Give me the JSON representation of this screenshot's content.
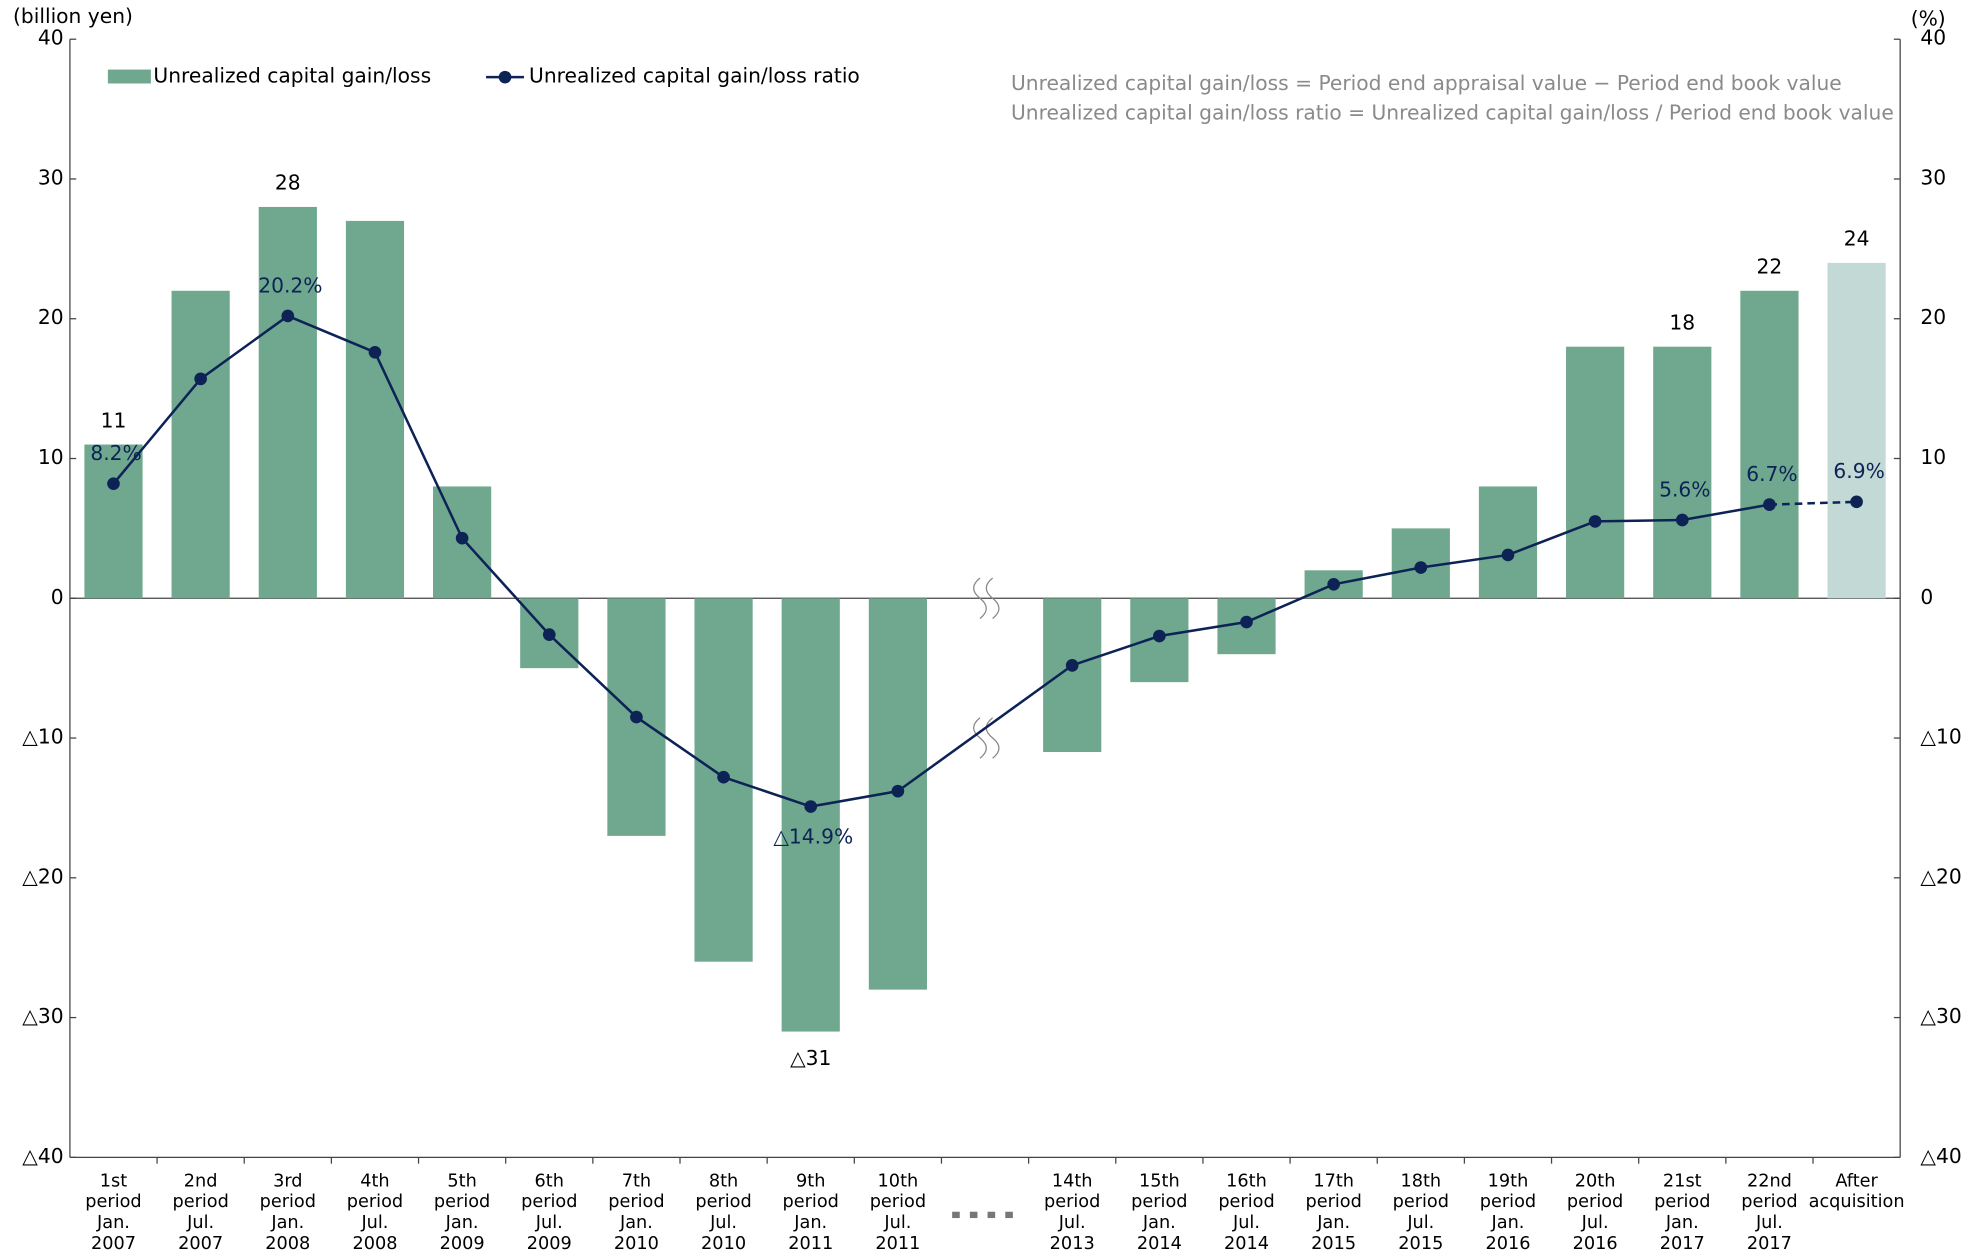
{
  "chart_data": {
    "type": "bar_line",
    "y_axis_label": "(billion yen)",
    "y2_axis_label": "(%)",
    "annotations": [
      "Unrealized capital gain/loss = Period end appraisal value − Period end book value",
      "Unrealized capital gain/loss ratio = Unrealized capital gain/loss / Period end book value"
    ],
    "categories": [
      "1st\nperiod\nJan.\n2007",
      "2nd\nperiod\nJul.\n2007",
      "3rd\nperiod\nJan.\n2008",
      "4th\nperiod\nJul.\n2008",
      "5th\nperiod\nJan.\n2009",
      "6th\nperiod\nJul.\n2009",
      "7th\nperiod\nJan.\n2010",
      "8th\nperiod\nJul.\n2010",
      "9th\nperiod\nJan.\n2011",
      "10th\nperiod\nJul.\n2011",
      null,
      "14th\nperiod\nJul.\n2013",
      "15th\nperiod\nJan.\n2014",
      "16th\nperiod\nJul.\n2014",
      "17th\nperiod\nJan.\n2015",
      "18th\nperiod\nJul.\n2015",
      "19th\nperiod\nJan.\n2016",
      "20th\nperiod\nJul.\n2016",
      "21st\nperiod\nJan.\n2017",
      "22nd\nperiod\nJul.\n2017",
      "After\nacquisition"
    ],
    "series": [
      {
        "name": "Unrealized capital gain/loss",
        "type": "bar",
        "color": "#6fa88e",
        "colors": [
          "#6fa88e",
          "#6fa88e",
          "#6fa88e",
          "#6fa88e",
          "#6fa88e",
          "#6fa88e",
          "#6fa88e",
          "#6fa88e",
          "#6fa88e",
          "#6fa88e",
          null,
          "#6fa88e",
          "#6fa88e",
          "#6fa88e",
          "#6fa88e",
          "#6fa88e",
          "#6fa88e",
          "#6fa88e",
          "#6fa88e",
          "#6fa88e",
          "#c2d9d5"
        ],
        "values": [
          11,
          22,
          28,
          27,
          8,
          -5,
          -17,
          -26,
          -31,
          -28,
          null,
          -11,
          -6,
          -4,
          2,
          5,
          8,
          18,
          18,
          22,
          24
        ],
        "value_labels": [
          "11",
          null,
          "28",
          null,
          null,
          null,
          null,
          null,
          "△31",
          null,
          null,
          null,
          null,
          null,
          null,
          null,
          null,
          null,
          "18",
          "22",
          "24"
        ]
      },
      {
        "name": "Unrealized capital gain/loss ratio",
        "type": "line",
        "axis": "y2",
        "color": "#0d2356",
        "values": [
          8.2,
          15.7,
          20.2,
          17.6,
          4.3,
          -2.6,
          -8.5,
          -12.8,
          -14.9,
          -13.8,
          null,
          -4.8,
          -2.7,
          -1.7,
          1.0,
          2.2,
          3.1,
          5.5,
          5.6,
          6.7,
          6.9
        ],
        "value_labels": [
          "8.2%",
          null,
          "20.2%",
          null,
          null,
          null,
          null,
          null,
          "△14.9%",
          null,
          null,
          null,
          null,
          null,
          null,
          null,
          null,
          null,
          "5.6%",
          "6.7%",
          "6.9%"
        ]
      }
    ],
    "ylim": [
      -40,
      40
    ],
    "yticks": [
      {
        "value": -40,
        "label": "△40"
      },
      {
        "value": -30,
        "label": "△30"
      },
      {
        "value": -20,
        "label": "△20"
      },
      {
        "value": -10,
        "label": "△10"
      },
      0,
      10,
      20,
      30,
      40
    ],
    "y2lim": [
      -40,
      40
    ],
    "y2ticks": [
      {
        "value": -40,
        "label": "△40"
      },
      {
        "value": -30,
        "label": "△30"
      },
      {
        "value": -20,
        "label": "△20"
      },
      {
        "value": -10,
        "label": "△10"
      },
      0,
      10,
      20,
      30,
      40
    ]
  }
}
